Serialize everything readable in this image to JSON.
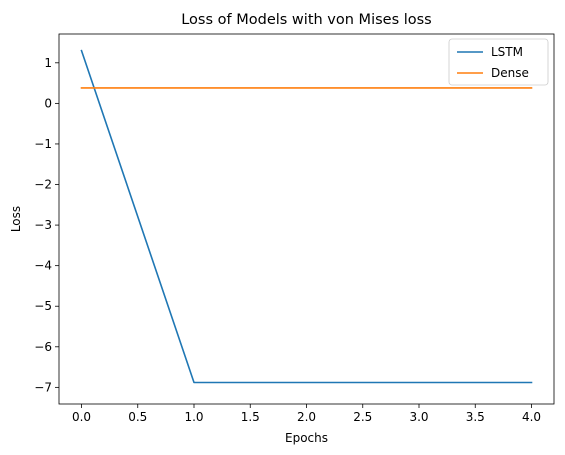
{
  "chart_data": {
    "type": "line",
    "title": "Loss of Models with von Mises loss",
    "xlabel": "Epochs",
    "ylabel": "Loss",
    "xlim": [
      -0.2,
      4.2
    ],
    "ylim": [
      -7.41,
      1.71
    ],
    "x": [
      0,
      1,
      2,
      3,
      4
    ],
    "xticks": [
      0.0,
      0.5,
      1.0,
      1.5,
      2.0,
      2.5,
      3.0,
      3.5,
      4.0
    ],
    "xtick_labels": [
      "0.0",
      "0.5",
      "1.0",
      "1.5",
      "2.0",
      "2.5",
      "3.0",
      "3.5",
      "4.0"
    ],
    "yticks": [
      1,
      0,
      -1,
      -2,
      -3,
      -4,
      -5,
      -6,
      -7
    ],
    "ytick_labels": [
      "1",
      "0",
      "−1",
      "−2",
      "−3",
      "−4",
      "−5",
      "−6",
      "−7"
    ],
    "grid": false,
    "legend_position": "top-right",
    "series": [
      {
        "name": "LSTM",
        "color": "#1f77b4",
        "values": [
          1.3,
          -6.88,
          -6.88,
          -6.88,
          -6.88
        ]
      },
      {
        "name": "Dense",
        "color": "#ff7f0e",
        "values": [
          0.38,
          0.38,
          0.38,
          0.38,
          0.38
        ]
      }
    ]
  }
}
